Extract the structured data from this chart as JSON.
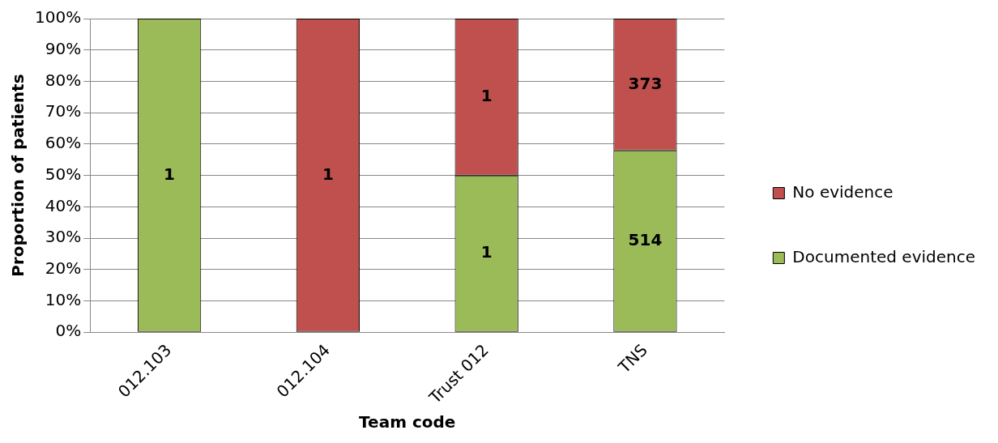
{
  "chart_data": {
    "type": "bar",
    "stacked": true,
    "xlabel": "Team code",
    "ylabel": "Proportion of patients",
    "categories": [
      "012.103",
      "012.104",
      "Trust 012",
      "TNS"
    ],
    "series": [
      {
        "name": "Documented evidence",
        "color": "#9bbb59",
        "values": [
          100,
          0,
          50,
          58
        ]
      },
      {
        "name": "No evidence",
        "color": "#c0504d",
        "values": [
          0,
          100,
          50,
          42
        ]
      }
    ],
    "annotations": [
      "1",
      "1",
      "1",
      "1",
      "514",
      "373"
    ],
    "ylim": [
      0,
      100
    ],
    "yticks": [
      {
        "value": 0,
        "label": "0%"
      },
      {
        "value": 10,
        "label": "10%"
      },
      {
        "value": 20,
        "label": "20%"
      },
      {
        "value": 30,
        "label": "30%"
      },
      {
        "value": 40,
        "label": "40%"
      },
      {
        "value": 50,
        "label": "50%"
      },
      {
        "value": 60,
        "label": "60%"
      },
      {
        "value": 70,
        "label": "70%"
      },
      {
        "value": 80,
        "label": "80%"
      },
      {
        "value": 90,
        "label": "90%"
      },
      {
        "value": 100,
        "label": "100%"
      }
    ],
    "grid": "y",
    "legend": "right"
  }
}
